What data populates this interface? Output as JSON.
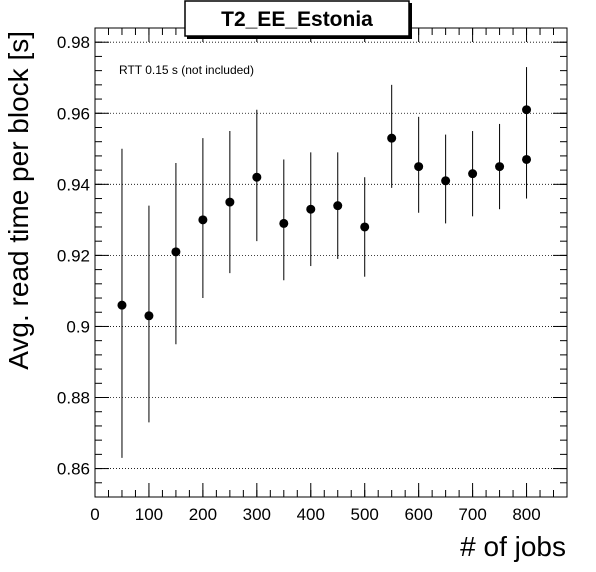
{
  "chart_data": {
    "type": "scatter",
    "title": "T2_EE_Estonia",
    "annotation": "RTT 0.15 s (not included)",
    "xlabel": "# of jobs",
    "ylabel": "Avg. read time per block [s]",
    "xlim": [
      0,
      875
    ],
    "ylim": [
      0.852,
      0.984
    ],
    "xticks": [
      0,
      100,
      200,
      300,
      400,
      500,
      600,
      700,
      800
    ],
    "yticks": [
      0.86,
      0.88,
      0.9,
      0.92,
      0.94,
      0.96,
      0.98
    ],
    "ytick_labels": [
      "0.86",
      "0.88",
      "0.9",
      "0.92",
      "0.94",
      "0.96",
      "0.98"
    ],
    "grid": "horizontal dotted at y ticks",
    "legend": "none",
    "marker_color": "#000000",
    "points": [
      {
        "x": 50,
        "y": 0.906,
        "ylow": 0.863,
        "yhigh": 0.95
      },
      {
        "x": 100,
        "y": 0.903,
        "ylow": 0.873,
        "yhigh": 0.934
      },
      {
        "x": 150,
        "y": 0.921,
        "ylow": 0.895,
        "yhigh": 0.946
      },
      {
        "x": 200,
        "y": 0.93,
        "ylow": 0.908,
        "yhigh": 0.953
      },
      {
        "x": 250,
        "y": 0.935,
        "ylow": 0.915,
        "yhigh": 0.955
      },
      {
        "x": 300,
        "y": 0.942,
        "ylow": 0.924,
        "yhigh": 0.961
      },
      {
        "x": 350,
        "y": 0.929,
        "ylow": 0.913,
        "yhigh": 0.947
      },
      {
        "x": 400,
        "y": 0.933,
        "ylow": 0.917,
        "yhigh": 0.949
      },
      {
        "x": 450,
        "y": 0.934,
        "ylow": 0.919,
        "yhigh": 0.949
      },
      {
        "x": 500,
        "y": 0.928,
        "ylow": 0.914,
        "yhigh": 0.942
      },
      {
        "x": 550,
        "y": 0.953,
        "ylow": 0.939,
        "yhigh": 0.968
      },
      {
        "x": 600,
        "y": 0.945,
        "ylow": 0.932,
        "yhigh": 0.959
      },
      {
        "x": 650,
        "y": 0.941,
        "ylow": 0.929,
        "yhigh": 0.954
      },
      {
        "x": 700,
        "y": 0.943,
        "ylow": 0.931,
        "yhigh": 0.955
      },
      {
        "x": 750,
        "y": 0.945,
        "ylow": 0.933,
        "yhigh": 0.957
      },
      {
        "x": 800,
        "y": 0.961,
        "ylow": 0.948,
        "yhigh": 0.973
      },
      {
        "x": 800,
        "y": 0.947,
        "ylow": 0.936,
        "yhigh": 0.959
      }
    ]
  }
}
